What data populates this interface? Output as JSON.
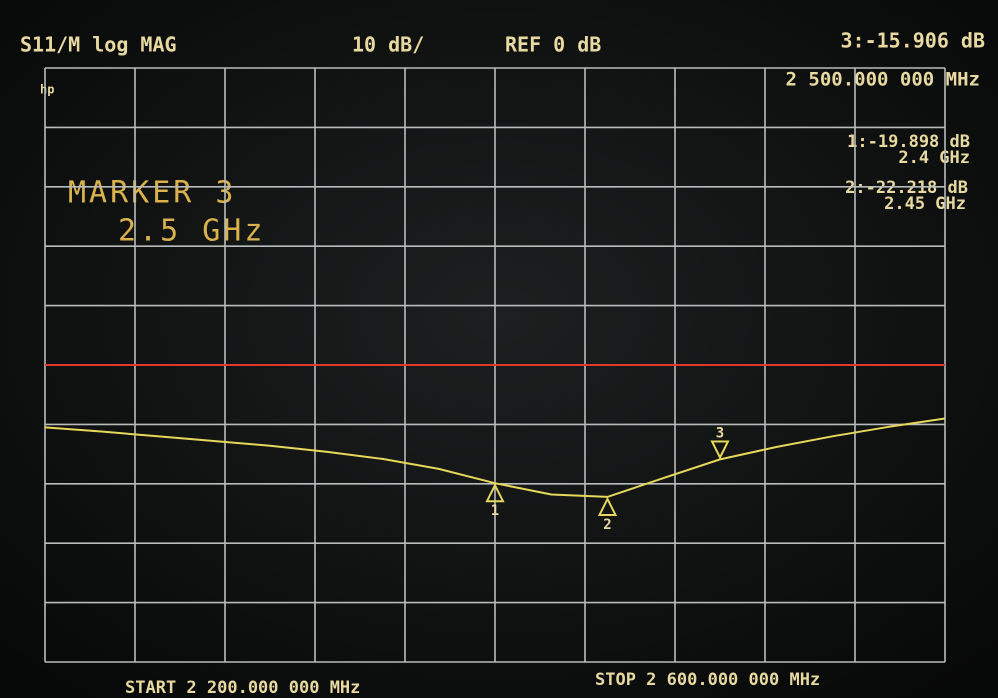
{
  "chart_data": {
    "type": "line",
    "logo": "hp",
    "header": {
      "measurement": "S11/M log MAG",
      "scale": "10 dB/",
      "reference": "REF 0 dB",
      "active_marker_readout": "3:-15.906 dB",
      "active_marker_frequency": "2 500.000 000 MHz"
    },
    "marker_panel": {
      "title": "MARKER 3",
      "frequency": "2.5 GHz"
    },
    "marker_list": [
      {
        "label": "1:-19.898 dB",
        "frequency": "2.4 GHz"
      },
      {
        "label": "2:-22.218 dB",
        "frequency": "2.45 GHz"
      }
    ],
    "start_label": "START 2 200.000 000 MHz",
    "stop_label": "STOP 2 600.000 000 MHz",
    "x": [
      2200,
      2225,
      2250,
      2275,
      2300,
      2325,
      2350,
      2375,
      2400,
      2425,
      2450,
      2475,
      2500,
      2525,
      2550,
      2575,
      2600
    ],
    "series": [
      {
        "color": "#e6d75a",
        "values": [
          -10.5,
          -11.2,
          -12.0,
          -12.8,
          -13.6,
          -14.6,
          -15.8,
          -17.5,
          -19.9,
          -21.8,
          -22.2,
          -19.0,
          -15.9,
          -13.8,
          -12.0,
          -10.4,
          -9.0
        ]
      },
      {
        "color": "#e2372c",
        "values": [
          0,
          0,
          0,
          0,
          0,
          0,
          0,
          0,
          0,
          0,
          0,
          0,
          0,
          0,
          0,
          0,
          0
        ]
      }
    ],
    "markers": [
      {
        "label": "1",
        "x": 2400,
        "value": -19.898,
        "direction": "up"
      },
      {
        "label": "2",
        "x": 2450,
        "value": -22.218,
        "direction": "up"
      },
      {
        "label": "3",
        "x": 2500,
        "value": -15.906,
        "direction": "down"
      }
    ],
    "xlim": [
      2200,
      2600
    ],
    "xticks": [
      2200,
      2240,
      2280,
      2320,
      2360,
      2400,
      2440,
      2480,
      2520,
      2560,
      2600
    ],
    "ylim": [
      -50,
      50
    ],
    "yticks": [
      -50,
      -40,
      -30,
      -20,
      -10,
      0,
      10,
      20,
      30,
      40,
      50
    ],
    "grid": true
  }
}
